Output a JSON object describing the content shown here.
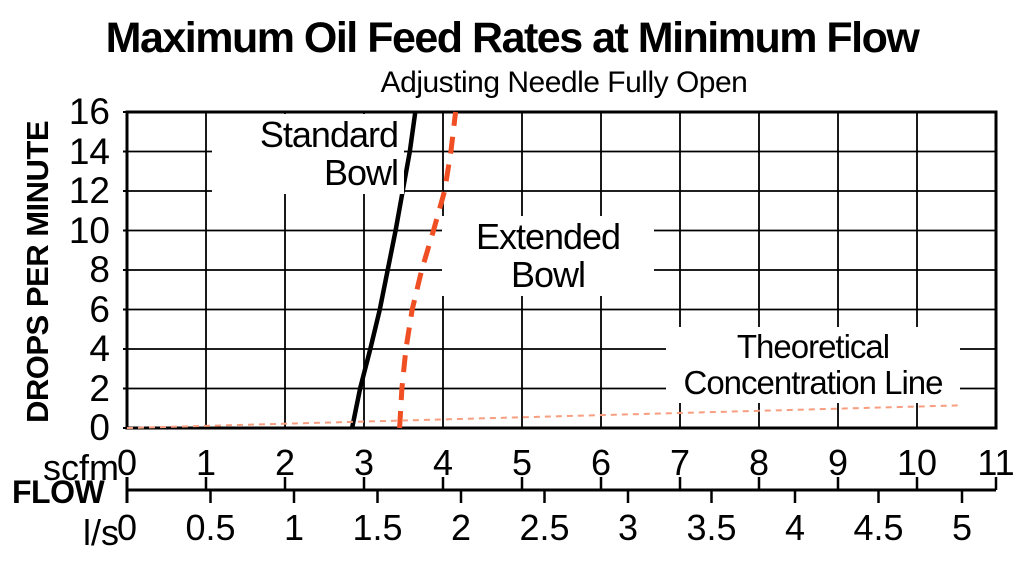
{
  "title": "Maximum Oil Feed Rates at Minimum Flow",
  "subtitle": "Adjusting Needle Fully Open",
  "y_axis": {
    "label": "DROPS PER MINUTE",
    "ticks": [
      0,
      2,
      4,
      6,
      8,
      10,
      12,
      14,
      16
    ]
  },
  "x_axis": {
    "flow_label": "FLOW",
    "scfm_unit": "scfm",
    "ls_unit": "l/s",
    "scfm_ticks": [
      0,
      1,
      2,
      3,
      4,
      5,
      6,
      7,
      8,
      9,
      10,
      11
    ],
    "ls_ticks": [
      0,
      0.5,
      1,
      1.5,
      2,
      2.5,
      3,
      3.5,
      4,
      4.5,
      5
    ]
  },
  "series_labels": {
    "standard": {
      "line1": "Standard",
      "line2": "Bowl"
    },
    "extended": {
      "line1": "Extended",
      "line2": "Bowl"
    },
    "theoretical": {
      "line1": "Theoretical",
      "line2": "Concentration Line"
    }
  },
  "colors": {
    "ink": "#000000",
    "extended_bowl_line": "#F04E23",
    "theoretical_line": "#F79E80"
  },
  "chart_data": {
    "type": "line",
    "title": "Maximum Oil Feed Rates at Minimum Flow",
    "subtitle": "Adjusting Needle Fully Open",
    "ylabel": "DROPS PER MINUTE",
    "xlabel": "FLOW",
    "x_units": [
      "scfm",
      "l/s"
    ],
    "xlim_scfm": [
      0,
      11
    ],
    "xlim_ls": [
      0,
      5
    ],
    "ylim": [
      0,
      16
    ],
    "grid": true,
    "x_grid_step_scfm": 1,
    "y_grid_step": 2,
    "series": [
      {
        "name": "Standard Bowl",
        "color": "#000000",
        "style": "solid",
        "x_unit": "scfm",
        "points": [
          [
            2.85,
            0
          ],
          [
            2.95,
            2
          ],
          [
            3.08,
            4
          ],
          [
            3.2,
            6
          ],
          [
            3.3,
            8
          ],
          [
            3.4,
            10
          ],
          [
            3.49,
            12
          ],
          [
            3.58,
            14
          ],
          [
            3.65,
            16
          ]
        ]
      },
      {
        "name": "Extended Bowl",
        "color": "#F04E23",
        "style": "dashed",
        "x_unit": "scfm",
        "points": [
          [
            3.45,
            0
          ],
          [
            3.48,
            2
          ],
          [
            3.53,
            4
          ],
          [
            3.61,
            6
          ],
          [
            3.73,
            8
          ],
          [
            3.88,
            10
          ],
          [
            4.02,
            12
          ],
          [
            4.1,
            14
          ],
          [
            4.16,
            16
          ]
        ]
      },
      {
        "name": "Theoretical Concentration Line",
        "color": "#F79E80",
        "style": "fine-dashed",
        "x_unit": "scfm",
        "points": [
          [
            0,
            0
          ],
          [
            10.57,
            1.15
          ]
        ]
      }
    ]
  }
}
